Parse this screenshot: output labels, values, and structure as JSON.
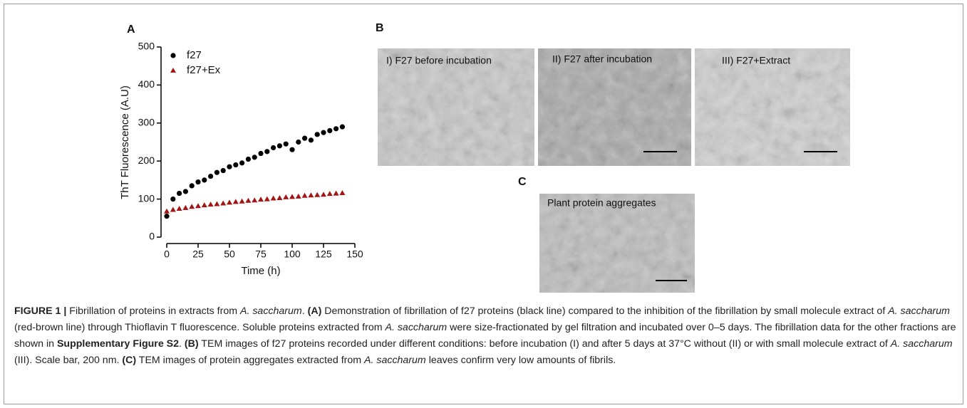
{
  "chart_data": {
    "type": "scatter",
    "x_label": "Time (h)",
    "y_label": "ThT Fluorescence (A.U)",
    "xlim": [
      0,
      150
    ],
    "xticks": [
      0,
      25,
      50,
      75,
      100,
      125,
      150
    ],
    "ylim": [
      0,
      500
    ],
    "yticks": [
      0,
      100,
      200,
      300,
      400,
      500
    ],
    "x": [
      0,
      5,
      10,
      15,
      20,
      25,
      30,
      35,
      40,
      45,
      50,
      55,
      60,
      65,
      70,
      75,
      80,
      85,
      90,
      95,
      100,
      105,
      110,
      115,
      120,
      125,
      130,
      135,
      140
    ],
    "series": [
      {
        "name": "f27",
        "color": "#000000",
        "marker": "circle",
        "values": [
          55,
          100,
          115,
          120,
          135,
          145,
          150,
          160,
          170,
          175,
          185,
          190,
          195,
          205,
          210,
          220,
          225,
          235,
          240,
          245,
          230,
          250,
          260,
          255,
          270,
          275,
          280,
          285,
          290
        ]
      },
      {
        "name": "f27+Ex",
        "color": "#a31515",
        "marker": "triangle",
        "values": [
          68,
          72,
          75,
          77,
          80,
          82,
          84,
          86,
          87,
          89,
          91,
          93,
          94,
          96,
          97,
          99,
          100,
          102,
          103,
          105,
          106,
          107,
          109,
          110,
          111,
          112,
          114,
          115,
          116
        ]
      }
    ]
  },
  "figure": {
    "panel_a": "A",
    "panel_b": "B",
    "panel_c": "C",
    "images": [
      "I) F27 before incubation",
      "II) F27 after incubation",
      "III) F27+Extract",
      "Plant protein aggregates"
    ],
    "caption": [
      "FIGURE 1 |",
      " Fibrillation of proteins in extracts from ",
      "A. saccharum",
      ". ",
      "(A)",
      " Demonstration of fibrillation of f27 proteins (black line) compared to the inhibition of the fibrillation by small molecule extract of ",
      "A. saccharum",
      " (red-brown line) through Thioflavin T fluorescence. Soluble proteins extracted from ",
      "A. saccharum",
      " were size-fractionated by gel filtration and incubated over 0–5 days. The fibrillation data for the other fractions are shown in ",
      "Supplementary Figure S2",
      ". ",
      "(B)",
      " TEM images of f27 proteins recorded under different conditions: before incubation (I) and after 5 days at 37°C without (II) or with small molecule extract of ",
      "A. saccharum",
      " (III). Scale bar, 200 nm. ",
      "(C)",
      " TEM images of protein aggregates extracted from ",
      "A. saccharum",
      " leaves confirm very low amounts of fibrils."
    ]
  }
}
